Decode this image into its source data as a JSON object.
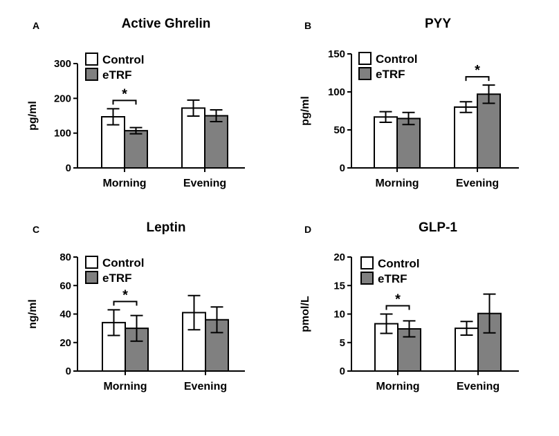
{
  "chart_data": [
    {
      "panel_label": "A",
      "type": "bar",
      "title": "Active Ghrelin",
      "ylabel": "pg/ml",
      "categories": [
        "Morning",
        "Evening"
      ],
      "ylim": [
        0,
        300
      ],
      "yticks": [
        "0",
        "100",
        "200",
        "300"
      ],
      "series": [
        {
          "name": "Control",
          "values": [
            147,
            172
          ],
          "errors": [
            23,
            23
          ]
        },
        {
          "name": "eTRF",
          "values": [
            107,
            150
          ],
          "errors": [
            9,
            17
          ]
        }
      ],
      "significance": [
        {
          "category": "Morning",
          "label": "*"
        }
      ]
    },
    {
      "panel_label": "B",
      "type": "bar",
      "title": "PYY",
      "ylabel": "pg/ml",
      "categories": [
        "Morning",
        "Evening"
      ],
      "ylim": [
        0,
        150
      ],
      "yticks": [
        "0",
        "50",
        "100",
        "150"
      ],
      "series": [
        {
          "name": "Control",
          "values": [
            67,
            80
          ],
          "errors": [
            7,
            7
          ]
        },
        {
          "name": "eTRF",
          "values": [
            65,
            97
          ],
          "errors": [
            8,
            12
          ]
        }
      ],
      "significance": [
        {
          "category": "Evening",
          "label": "*"
        }
      ]
    },
    {
      "panel_label": "C",
      "type": "bar",
      "title": "Leptin",
      "ylabel": "ng/ml",
      "categories": [
        "Morning",
        "Evening"
      ],
      "ylim": [
        0,
        80
      ],
      "yticks": [
        "0",
        "20",
        "40",
        "60",
        "80"
      ],
      "series": [
        {
          "name": "Control",
          "values": [
            34,
            41
          ],
          "errors": [
            9,
            12
          ]
        },
        {
          "name": "eTRF",
          "values": [
            30,
            36
          ],
          "errors": [
            9,
            9
          ]
        }
      ],
      "significance": [
        {
          "category": "Morning",
          "label": "*"
        }
      ]
    },
    {
      "panel_label": "D",
      "type": "bar",
      "title": "GLP-1",
      "ylabel": "pmol/L",
      "categories": [
        "Morning",
        "Evening"
      ],
      "ylim": [
        0,
        20
      ],
      "yticks": [
        "0",
        "5",
        "10",
        "15",
        "20"
      ],
      "series": [
        {
          "name": "Control",
          "values": [
            8.3,
            7.5
          ],
          "errors": [
            1.7,
            1.2
          ]
        },
        {
          "name": "eTRF",
          "values": [
            7.4,
            10.1
          ],
          "errors": [
            1.4,
            3.4
          ]
        }
      ],
      "significance": [
        {
          "category": "Morning",
          "label": "*"
        }
      ]
    }
  ],
  "colors": {
    "control_fill": "#ffffff",
    "etrf_fill": "#808080",
    "stroke": "#000000"
  }
}
